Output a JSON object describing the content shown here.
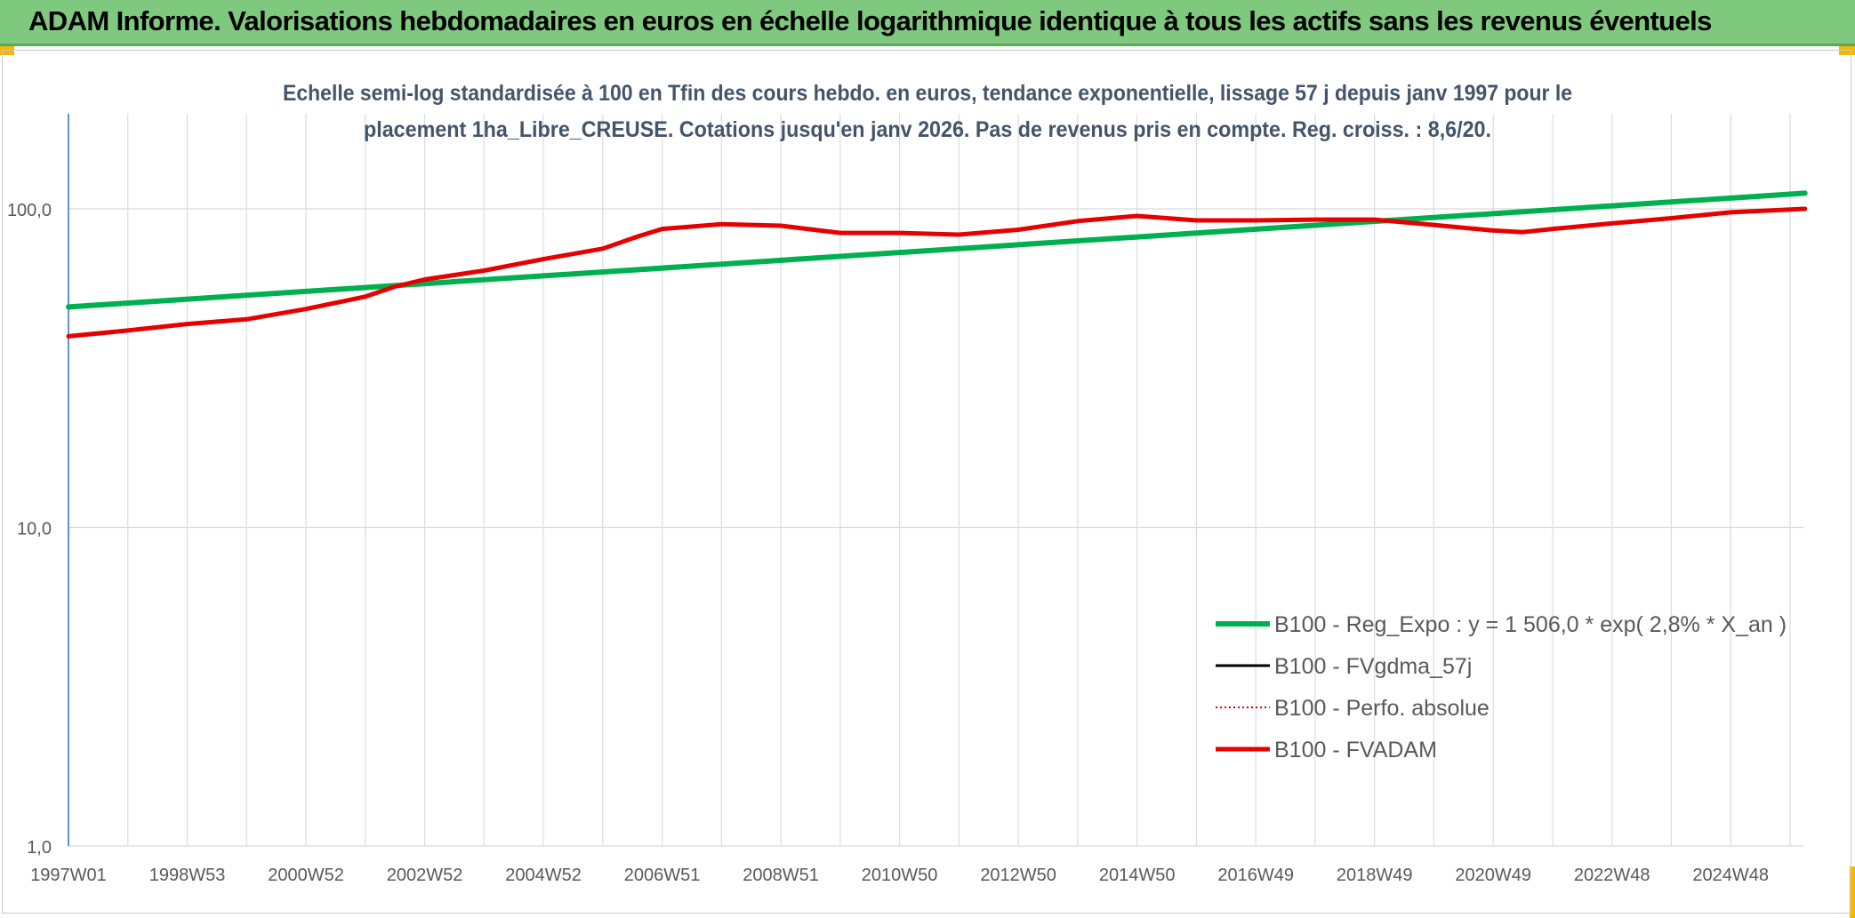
{
  "header": {
    "title": "ADAM Informe. Valorisations hebdomadaires en euros en échelle logarithmique identique à tous les actifs sans les revenus éventuels"
  },
  "chart_data": {
    "type": "line",
    "title": "Echelle semi-log standardisée à 100 en Tfin des cours hebdo. en euros, tendance exponentielle, lissage 57 j depuis janv 1997 pour le",
    "subtitle": "placement 1ha_Libre_CREUSE. Cotations jusqu'en janv 2026. Pas de revenus pris en compte. Reg. croiss. : 8,6/20.",
    "yscale": "log",
    "ylim": [
      1,
      200
    ],
    "xlim": [
      1997.0,
      2026.25
    ],
    "y_ticks": [
      {
        "value": 1,
        "label": "1,0"
      },
      {
        "value": 10,
        "label": "10,0"
      },
      {
        "value": 100,
        "label": "100,0"
      }
    ],
    "x_ticks": [
      {
        "value": 1997.0,
        "label": "1997W01"
      },
      {
        "value": 1999.0,
        "label": "1998W53"
      },
      {
        "value": 2001.0,
        "label": "2000W52"
      },
      {
        "value": 2003.0,
        "label": "2002W52"
      },
      {
        "value": 2005.0,
        "label": "2004W52"
      },
      {
        "value": 2007.0,
        "label": "2006W51"
      },
      {
        "value": 2009.0,
        "label": "2008W51"
      },
      {
        "value": 2011.0,
        "label": "2010W50"
      },
      {
        "value": 2013.0,
        "label": "2012W50"
      },
      {
        "value": 2015.0,
        "label": "2014W50"
      },
      {
        "value": 2017.0,
        "label": "2016W49"
      },
      {
        "value": 2019.0,
        "label": "2018W49"
      },
      {
        "value": 2021.0,
        "label": "2020W49"
      },
      {
        "value": 2023.0,
        "label": "2022W48"
      },
      {
        "value": 2025.0,
        "label": "2024W48"
      }
    ],
    "minor_grid_x": [
      1998.0,
      2000.0,
      2002.0,
      2004.0,
      2006.0,
      2008.0,
      2010.0,
      2012.0,
      2014.0,
      2016.0,
      2018.0,
      2020.0,
      2022.0,
      2024.0,
      2026.0
    ],
    "series": [
      {
        "name": "B100 - Reg_Expo : y = 1 506,0 * exp( 2,8% *  X_an )",
        "color": "#00b050",
        "style": "solid",
        "width": 6,
        "points": [
          [
            1997.0,
            49.2
          ],
          [
            2026.25,
            112.0
          ]
        ]
      },
      {
        "name": "B100 - FVgdma_57j",
        "color": "#000000",
        "style": "solid",
        "width": 3,
        "points": []
      },
      {
        "name": "B100 - Perfo. absolue",
        "color": "#e00000",
        "style": "dotted",
        "width": 2,
        "points": []
      },
      {
        "name": "B100 - FVADAM",
        "color": "#e60000",
        "style": "solid",
        "width": 5,
        "points": [
          [
            1997.0,
            39.8
          ],
          [
            1998.0,
            41.5
          ],
          [
            1999.0,
            43.5
          ],
          [
            2000.0,
            45.0
          ],
          [
            2001.0,
            48.5
          ],
          [
            2002.0,
            53.0
          ],
          [
            2002.5,
            57.0
          ],
          [
            2003.0,
            60.0
          ],
          [
            2004.0,
            64.0
          ],
          [
            2005.0,
            69.5
          ],
          [
            2006.0,
            75.0
          ],
          [
            2006.6,
            82.0
          ],
          [
            2007.0,
            86.5
          ],
          [
            2008.0,
            89.5
          ],
          [
            2009.0,
            88.5
          ],
          [
            2010.0,
            84.0
          ],
          [
            2011.0,
            84.0
          ],
          [
            2012.0,
            83.0
          ],
          [
            2013.0,
            86.0
          ],
          [
            2014.0,
            91.5
          ],
          [
            2015.0,
            95.0
          ],
          [
            2016.0,
            92.0
          ],
          [
            2017.0,
            92.0
          ],
          [
            2018.0,
            92.5
          ],
          [
            2019.0,
            92.5
          ],
          [
            2020.0,
            89.0
          ],
          [
            2021.0,
            85.5
          ],
          [
            2021.5,
            84.5
          ],
          [
            2022.0,
            86.5
          ],
          [
            2023.0,
            90.0
          ],
          [
            2024.0,
            93.5
          ],
          [
            2025.0,
            97.5
          ],
          [
            2026.25,
            100.0
          ]
        ]
      }
    ],
    "legend_position": "lower-right"
  }
}
